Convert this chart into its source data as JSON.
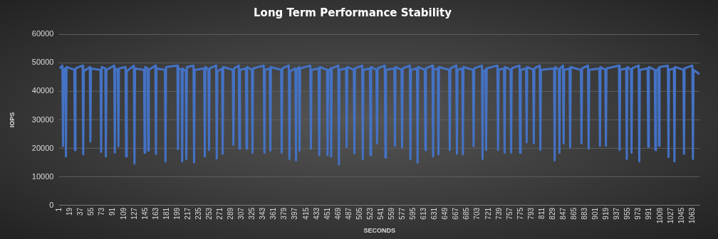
{
  "chart_data": {
    "type": "line",
    "title": "Long Term Performance Stability",
    "xlabel": "SECONDS",
    "ylabel": "IOPS",
    "xlim": [
      1,
      1075
    ],
    "xticks": [
      1,
      19,
      37,
      55,
      73,
      91,
      109,
      127,
      145,
      163,
      181,
      199,
      217,
      235,
      253,
      271,
      289,
      307,
      325,
      343,
      361,
      379,
      397,
      415,
      433,
      451,
      469,
      487,
      505,
      523,
      541,
      559,
      577,
      595,
      613,
      631,
      649,
      667,
      685,
      703,
      721,
      739,
      757,
      775,
      793,
      811,
      829,
      847,
      865,
      883,
      901,
      919,
      937,
      955,
      973,
      991,
      1009,
      1027,
      1045,
      1063
    ],
    "ylim": [
      0,
      60000
    ],
    "yticks": [
      0,
      10000,
      20000,
      30000,
      40000,
      50000,
      60000
    ],
    "grid": "y",
    "marker": "none",
    "x": [
      1,
      6,
      7,
      8,
      11,
      12,
      13,
      26,
      27,
      28,
      40,
      41,
      42,
      52,
      53,
      54,
      70,
      71,
      72,
      78,
      79,
      80,
      93,
      94,
      95,
      99,
      100,
      101,
      112,
      113,
      114,
      126,
      127,
      128,
      143,
      144,
      145,
      149,
      150,
      151,
      162,
      163,
      164,
      178,
      179,
      180,
      199,
      200,
      201,
      206,
      207,
      208,
      213,
      214,
      215,
      226,
      227,
      228,
      244,
      245,
      246,
      251,
      252,
      253,
      264,
      265,
      266,
      274,
      275,
      276,
      292,
      293,
      294,
      302,
      303,
      304,
      314,
      315,
      316,
      324,
      325,
      326,
      344,
      345,
      346,
      354,
      355,
      356,
      373,
      374,
      375,
      386,
      387,
      388,
      397,
      398,
      399,
      403,
      404,
      405,
      422,
      423,
      424,
      436,
      437,
      438,
      450,
      451,
      452,
      456,
      457,
      458,
      469,
      470,
      471,
      482,
      483,
      484,
      495,
      496,
      497,
      509,
      510,
      511,
      522,
      523,
      524,
      533,
      534,
      535,
      547,
      548,
      549,
      563,
      564,
      565,
      575,
      576,
      577,
      589,
      590,
      591,
      601,
      602,
      603,
      614,
      615,
      616,
      627,
      628,
      629,
      636,
      637,
      638,
      655,
      656,
      657,
      667,
      668,
      669,
      677,
      678,
      679,
      695,
      696,
      697,
      710,
      711,
      712,
      716,
      717,
      718,
      736,
      737,
      738,
      747,
      748,
      749,
      758,
      759,
      760,
      773,
      774,
      775,
      784,
      785,
      786,
      796,
      797,
      798,
      807,
      808,
      809,
      831,
      832,
      833,
      839,
      840,
      841,
      846,
      847,
      848,
      857,
      858,
      859,
      876,
      877,
      878,
      888,
      889,
      890,
      907,
      908,
      909,
      917,
      918,
      919,
      940,
      941,
      942,
      952,
      953,
      954,
      960,
      961,
      962,
      973,
      974,
      975,
      988,
      989,
      990,
      1000,
      1001,
      1002,
      1006,
      1007,
      1008,
      1022,
      1023,
      1024,
      1032,
      1033,
      1034,
      1048,
      1049,
      1050,
      1063,
      1064,
      1065,
      1075
    ],
    "series": [
      {
        "color": "#4472c4",
        "values": [
          48000,
          49000,
          20800,
          47500,
          48000,
          17200,
          48500,
          47500,
          19400,
          48000,
          49000,
          17900,
          47000,
          48500,
          22400,
          48000,
          47500,
          18800,
          48500,
          48000,
          17200,
          47500,
          49000,
          18500,
          48000,
          47500,
          20800,
          48000,
          48500,
          17200,
          47000,
          49000,
          14700,
          48000,
          47500,
          18500,
          48500,
          48000,
          19200,
          47500,
          49000,
          18100,
          48000,
          47500,
          15400,
          48500,
          49000,
          19700,
          48000,
          47500,
          15400,
          48000,
          47000,
          16300,
          48500,
          49000,
          15100,
          47500,
          48000,
          17200,
          48500,
          47500,
          19400,
          48000,
          49000,
          16500,
          47000,
          48000,
          18100,
          48500,
          47500,
          21200,
          48000,
          49000,
          19900,
          47500,
          48000,
          19900,
          48500,
          47500,
          18500,
          48000,
          49000,
          18500,
          47500,
          48000,
          19200,
          48500,
          47500,
          18500,
          48000,
          49000,
          16300,
          47000,
          48000,
          15800,
          47500,
          48500,
          19200,
          48000,
          49000,
          19900,
          47500,
          48000,
          17600,
          48500,
          47500,
          17600,
          47000,
          48000,
          17200,
          48000,
          49000,
          14300,
          47500,
          48000,
          20500,
          48500,
          47500,
          18300,
          48000,
          49000,
          16300,
          47500,
          48000,
          17600,
          48500,
          47500,
          21700,
          48000,
          49000,
          16800,
          47500,
          48000,
          20900,
          48500,
          47500,
          20300,
          48000,
          49000,
          16300,
          47500,
          48000,
          15000,
          48500,
          47500,
          19400,
          48000,
          49000,
          17200,
          47500,
          48000,
          17900,
          48500,
          47500,
          19400,
          48000,
          49000,
          18100,
          47500,
          48000,
          17900,
          48500,
          47500,
          20800,
          48000,
          49000,
          16300,
          47000,
          47500,
          19400,
          48000,
          49000,
          19400,
          47500,
          48000,
          18500,
          48500,
          47500,
          18500,
          48000,
          49000,
          18500,
          47500,
          48000,
          22100,
          48500,
          47500,
          21800,
          48000,
          49000,
          19400,
          47500,
          48000,
          15800,
          48500,
          47500,
          18500,
          48000,
          49000,
          21700,
          47500,
          48000,
          20300,
          48500,
          47500,
          21700,
          48000,
          49000,
          19900,
          47500,
          48000,
          20900,
          48500,
          47500,
          20900,
          48000,
          49000,
          19400,
          47500,
          48000,
          16300,
          48500,
          47500,
          18500,
          48000,
          49000,
          15400,
          47500,
          48000,
          20600,
          48500,
          47500,
          19400,
          47000,
          48000,
          20900,
          48500,
          49000,
          17000,
          47500,
          48000,
          15400,
          48500,
          47500,
          18100,
          48000,
          49000,
          16300,
          47500,
          46000
        ]
      }
    ]
  }
}
